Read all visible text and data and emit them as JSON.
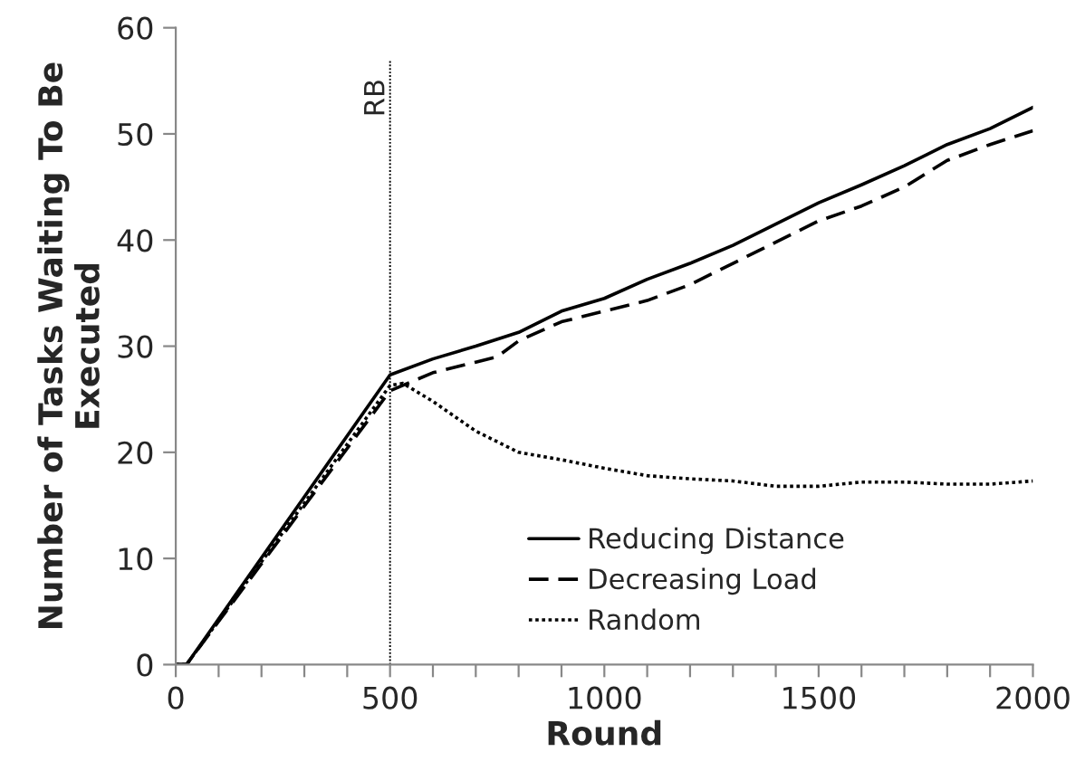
{
  "chart_data": {
    "type": "line",
    "xlabel": "Round",
    "ylabel": "Number of Tasks Waiting To Be Executed",
    "xlim": [
      0,
      2000
    ],
    "ylim": [
      0,
      60
    ],
    "xticks": [
      0,
      {
        "value": 100,
        "label": null
      },
      {
        "value": 200,
        "label": null
      },
      {
        "value": 300,
        "label": null
      },
      {
        "value": 400,
        "label": null
      },
      500,
      {
        "value": 600,
        "label": null
      },
      {
        "value": 700,
        "label": null
      },
      {
        "value": 800,
        "label": null
      },
      {
        "value": 900,
        "label": null
      },
      1000,
      {
        "value": 1100,
        "label": null
      },
      {
        "value": 1200,
        "label": null
      },
      {
        "value": 1300,
        "label": null
      },
      {
        "value": 1400,
        "label": null
      },
      1500,
      {
        "value": 1600,
        "label": null
      },
      {
        "value": 1700,
        "label": null
      },
      {
        "value": 1800,
        "label": null
      },
      {
        "value": 1900,
        "label": null
      },
      2000
    ],
    "yticks": [
      0,
      10,
      20,
      30,
      40,
      50,
      60
    ],
    "grid": false,
    "legend": "bottom right",
    "ref_lines": [
      {
        "axis": "x",
        "value": 500,
        "label": "RB",
        "color": "#000000",
        "line_style": "dotted"
      }
    ],
    "series": [
      {
        "name": "Reducing Distance",
        "color": "#000000",
        "line_style": "solid",
        "x": [
          0,
          25,
          500,
          600,
          700,
          800,
          900,
          1000,
          1100,
          1200,
          1300,
          1400,
          1500,
          1600,
          1700,
          1800,
          1900,
          2000
        ],
        "values": [
          0,
          0,
          27.3,
          28.8,
          30,
          31.3,
          33.3,
          34.5,
          36.3,
          37.8,
          39.5,
          41.5,
          43.5,
          45.2,
          47,
          49,
          50.5,
          52.5
        ]
      },
      {
        "name": "Decreasing Load",
        "color": "#000000",
        "line_style": "dashed",
        "x": [
          0,
          25,
          500,
          600,
          700,
          750,
          800,
          900,
          1000,
          1100,
          1200,
          1300,
          1400,
          1500,
          1600,
          1700,
          1800,
          1900,
          2000
        ],
        "values": [
          0,
          0,
          25.8,
          27.5,
          28.5,
          29,
          30.5,
          32.3,
          33.3,
          34.3,
          35.8,
          37.8,
          39.8,
          41.8,
          43.2,
          45,
          47.5,
          49,
          50.3
        ]
      },
      {
        "name": "Random",
        "color": "#000000",
        "line_style": "dotted",
        "x": [
          0,
          25,
          500,
          530,
          600,
          700,
          800,
          900,
          1000,
          1100,
          1200,
          1300,
          1400,
          1500,
          1600,
          1700,
          1800,
          1900,
          2000
        ],
        "values": [
          0,
          0,
          26.3,
          26.5,
          24.8,
          22,
          20,
          19.3,
          18.5,
          17.8,
          17.5,
          17.3,
          16.8,
          16.8,
          17.2,
          17.2,
          17,
          17,
          17.3
        ]
      }
    ]
  }
}
